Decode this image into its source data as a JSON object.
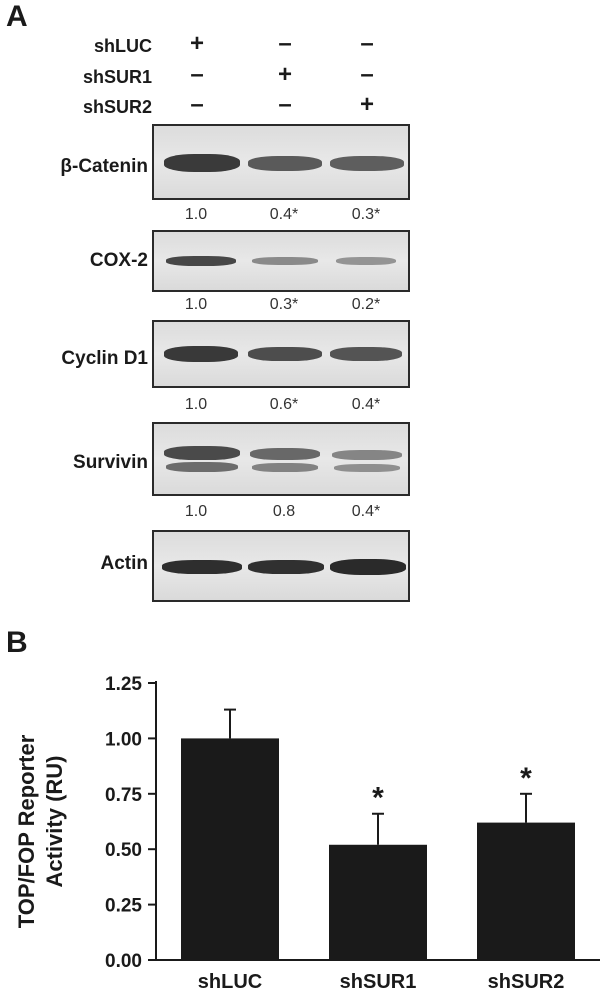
{
  "panel_a": {
    "letter": "A",
    "conditions": [
      {
        "label": "shLUC",
        "signs": [
          "+",
          "–",
          "–"
        ]
      },
      {
        "label": "shSUR1",
        "signs": [
          "–",
          "+",
          "–"
        ]
      },
      {
        "label": "shSUR2",
        "signs": [
          "–",
          "–",
          "+"
        ]
      }
    ],
    "blots": [
      {
        "label": "β-Catenin",
        "quant": [
          "1.0",
          "0.4*",
          "0.3*"
        ]
      },
      {
        "label": "COX-2",
        "quant": [
          "1.0",
          "0.3*",
          "0.2*"
        ]
      },
      {
        "label": "Cyclin D1",
        "quant": [
          "1.0",
          "0.6*",
          "0.4*"
        ]
      },
      {
        "label": "Survivin",
        "quant": [
          "1.0",
          "0.8",
          "0.4*"
        ]
      },
      {
        "label": "Actin",
        "quant": []
      }
    ]
  },
  "panel_b": {
    "letter": "B"
  },
  "chart_data": {
    "type": "bar",
    "categories": [
      "shLUC",
      "shSUR1",
      "shSUR2"
    ],
    "values": [
      1.0,
      0.52,
      0.62
    ],
    "errors": [
      0.13,
      0.14,
      0.13
    ],
    "significance": [
      "",
      "*",
      "*"
    ],
    "ylabel_line1": "TOP/FOP Reporter",
    "ylabel_line2": "Activity (RU)",
    "xlabel": "",
    "yticks": [
      "0.00",
      "0.25",
      "0.50",
      "0.75",
      "1.00",
      "1.25"
    ],
    "ylim": [
      0,
      1.25
    ],
    "bar_color": "#1a1a1a"
  }
}
